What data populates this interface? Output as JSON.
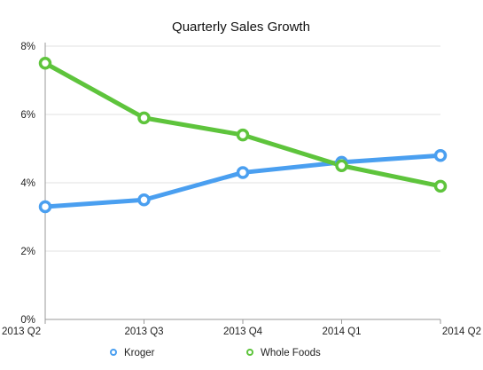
{
  "chart_data": {
    "type": "line",
    "title": "Quarterly Sales Growth",
    "xlabel": "",
    "ylabel": "",
    "categories": [
      "2013 Q2",
      "2013 Q3",
      "2013 Q4",
      "2014 Q1",
      "2014 Q2"
    ],
    "ylim": [
      0,
      8
    ],
    "yticks": [
      0,
      2,
      4,
      6,
      8
    ],
    "ytick_labels": [
      "0%",
      "2%",
      "4%",
      "6%",
      "8%"
    ],
    "grid": true,
    "legend_position": "bottom",
    "series": [
      {
        "name": "Kroger",
        "color": "#4a9ff0",
        "values": [
          3.3,
          3.5,
          4.3,
          4.6,
          4.8
        ]
      },
      {
        "name": "Whole Foods",
        "color": "#5ec43c",
        "values": [
          7.5,
          5.9,
          5.4,
          4.5,
          3.9
        ]
      }
    ]
  }
}
